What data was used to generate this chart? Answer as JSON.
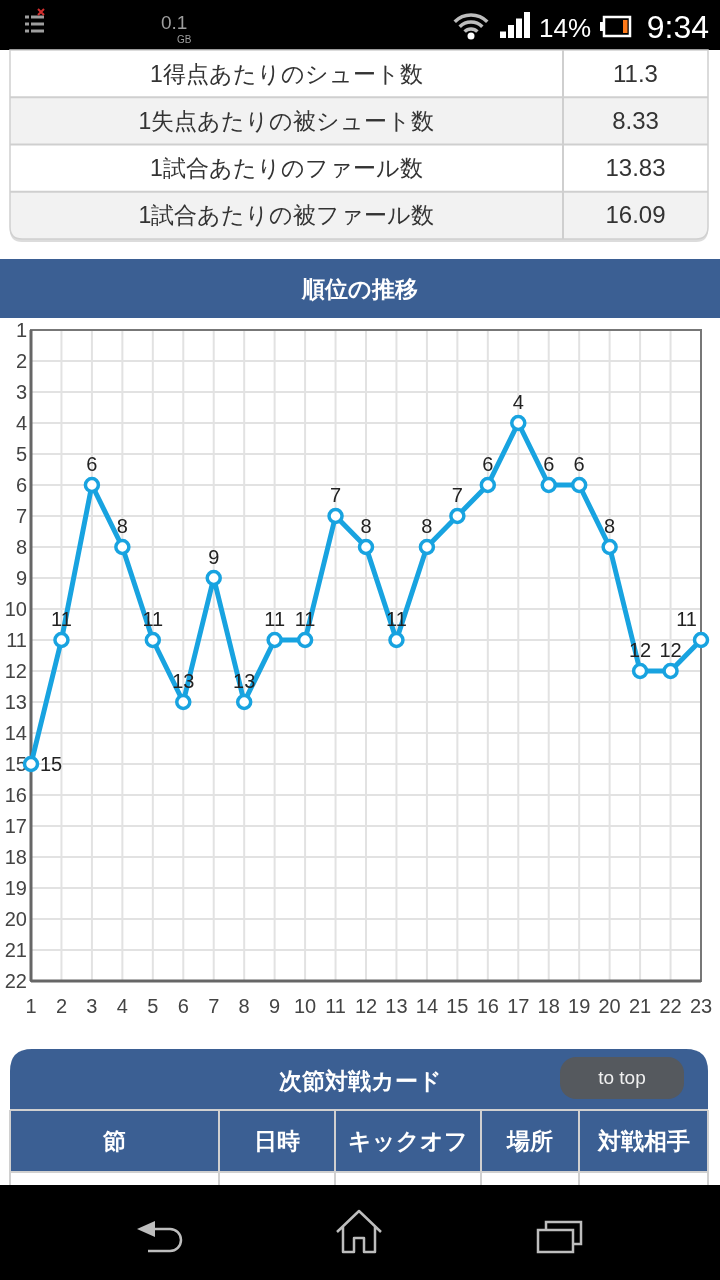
{
  "chart_data": [
    {
      "type": "other",
      "annotations": [
        "0.1",
        "GB",
        "14%",
        "9:34"
      ]
    },
    {
      "type": "other",
      "annotations": [
        "1得点あたりのシュート数",
        "11.3",
        "1失点あたりの被シュート数",
        "8.33",
        "1試合あたりのファール数",
        "13.83",
        "1試合あたりの被ファール数",
        "16.09"
      ]
    },
    {
      "type": "line",
      "title": "順位の推移",
      "x": [
        1,
        2,
        3,
        4,
        5,
        6,
        7,
        8,
        9,
        10,
        11,
        12,
        13,
        14,
        15,
        16,
        17,
        18,
        19,
        20,
        21,
        22,
        23
      ],
      "values": [
        15,
        11,
        6,
        8,
        11,
        13,
        9,
        13,
        11,
        11,
        7,
        8,
        11,
        8,
        7,
        6,
        4,
        6,
        6,
        8,
        12,
        12,
        11
      ],
      "color": "#18a3e0",
      "xlim": [
        1,
        23
      ],
      "xticks": [
        1,
        2,
        3,
        4,
        5,
        6,
        7,
        8,
        9,
        10,
        11,
        12,
        13,
        14,
        15,
        16,
        17,
        18,
        19,
        20,
        21,
        22,
        23
      ],
      "ylim": [
        22,
        1
      ],
      "yticks": [
        1,
        2,
        3,
        4,
        5,
        6,
        7,
        8,
        9,
        10,
        11,
        12,
        13,
        14,
        15,
        16,
        17,
        18,
        19,
        20,
        21,
        22
      ],
      "grid": true,
      "marker": "circle",
      "data_labels": true
    },
    {
      "type": "other",
      "title": "次節対戦カード",
      "annotations": [
        "節",
        "日時",
        "キックオフ",
        "場所",
        "対戦相手",
        "to top"
      ]
    }
  ]
}
